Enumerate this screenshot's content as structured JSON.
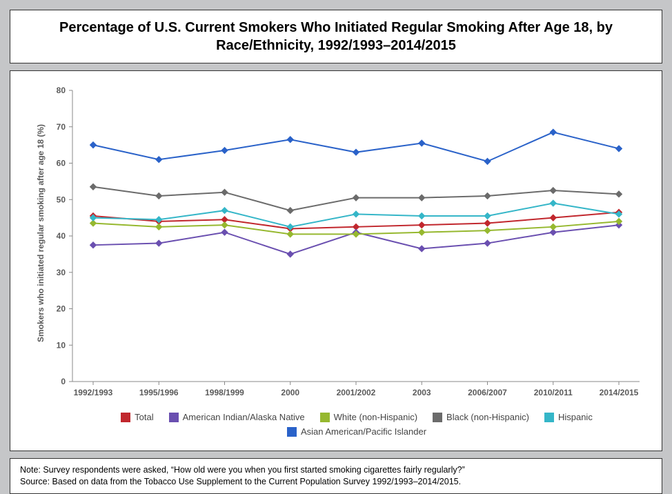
{
  "title": "Percentage of U.S. Current Smokers Who Initiated Regular Smoking After Age 18, by Race/Ethnicity, 1992/1993–2014/2015",
  "note_line1": "Note: Survey respondents were asked, “How old were you when you first started smoking cigarettes fairly regularly?”",
  "note_line2": "Source: Based on data from the Tobacco Use Supplement to the Current Population Survey 1992/1993–2014/2015.",
  "chart": {
    "type": "line",
    "ylabel": "Smokers who initiated regular smoking after age 18 (%)",
    "ylim": [
      0,
      80
    ],
    "ytick_step": 10,
    "categories": [
      "1992/1993",
      "1995/1996",
      "1998/1999",
      "2000",
      "2001/2002",
      "2003",
      "2006/2007",
      "2010/2011",
      "2014/2015"
    ],
    "background_color": "#ffffff",
    "grid_color": "#888888",
    "axis_color": "#888888",
    "label_fontsize": 12,
    "title_fontsize": 20,
    "marker": "diamond",
    "marker_size": 9,
    "line_width": 2,
    "series": [
      {
        "name": "Total",
        "color": "#c1272d",
        "values": [
          45.5,
          44,
          44.5,
          42,
          42.5,
          43,
          43.5,
          45,
          46.5
        ]
      },
      {
        "name": "American Indian/Alaska Native",
        "color": "#6a4fb0",
        "values": [
          37.5,
          38,
          41,
          35,
          41,
          36.5,
          38,
          41,
          43
        ]
      },
      {
        "name": "White (non-Hispanic)",
        "color": "#96b82f",
        "values": [
          43.5,
          42.5,
          43,
          40.5,
          40.5,
          41,
          41.5,
          42.5,
          44
        ]
      },
      {
        "name": "Black (non-Hispanic)",
        "color": "#6b6b6b",
        "values": [
          53.5,
          51,
          52,
          47,
          50.5,
          50.5,
          51,
          52.5,
          51.5
        ]
      },
      {
        "name": "Hispanic",
        "color": "#35b6c8",
        "values": [
          45,
          44.5,
          47,
          42.5,
          46,
          45.5,
          45.5,
          49,
          46
        ]
      },
      {
        "name": "Asian American/Pacific Islander",
        "color": "#2a62c9",
        "values": [
          65,
          61,
          63.5,
          66.5,
          63,
          65.5,
          60.5,
          68.5,
          64
        ]
      }
    ]
  }
}
